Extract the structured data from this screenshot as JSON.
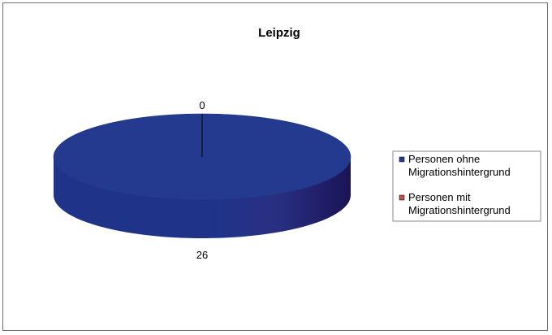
{
  "chart_data": {
    "type": "pie",
    "title": "Leipzig",
    "labels": [
      "Personen ohne Migrationshintergrund",
      "Personen mit Migrationshintergrund"
    ],
    "values": [
      26,
      0
    ],
    "data_labels": [
      "26",
      "0"
    ],
    "colors": [
      "#233a8f",
      "#c0504d"
    ],
    "legend": {
      "placement": "right",
      "entries": [
        {
          "line1": "Personen ohne",
          "line2": "Migrationshintergrund",
          "color": "#233a8f"
        },
        {
          "line1": "Personen mit",
          "line2": "Migrationshintergrund",
          "color": "#c0504d"
        }
      ]
    },
    "style": "3d"
  }
}
